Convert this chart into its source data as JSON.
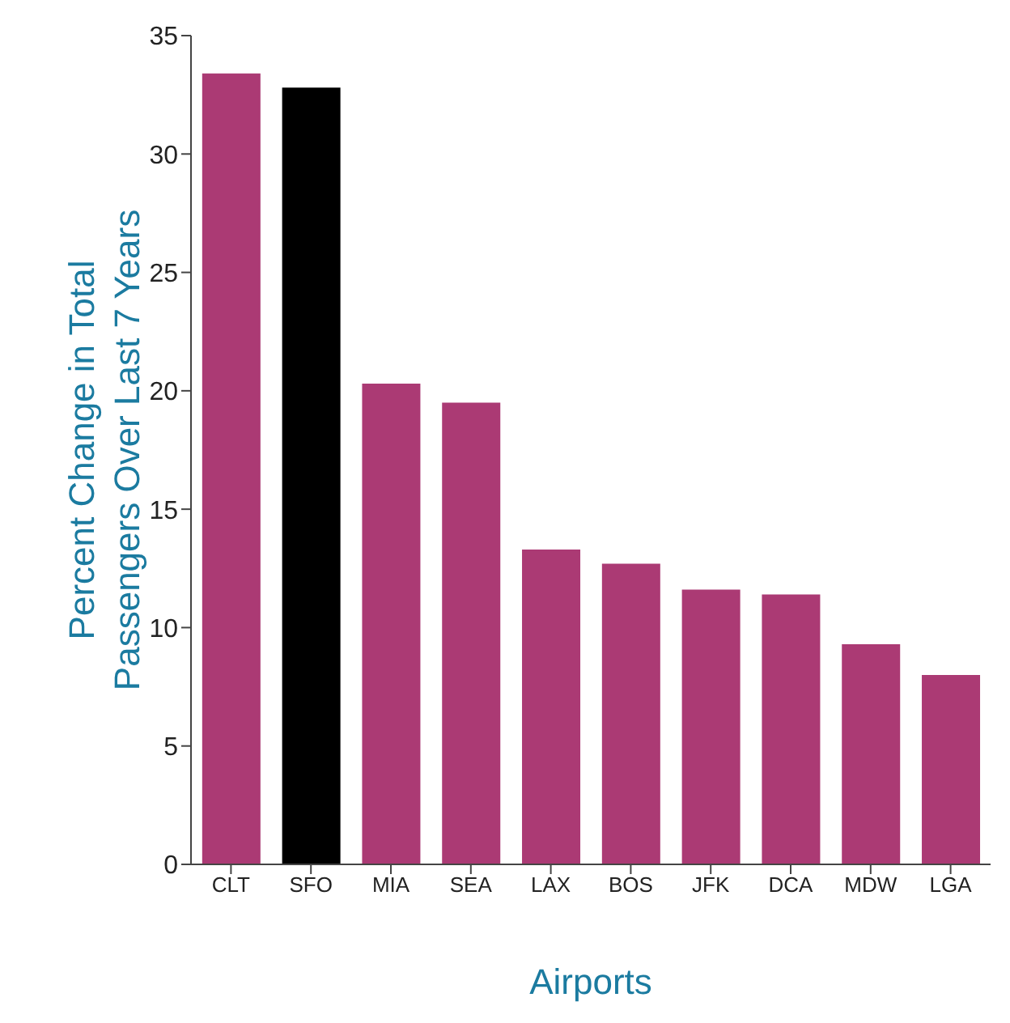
{
  "chart_data": {
    "type": "bar",
    "xlabel": "Airports",
    "ylabel": "Percent Change in Total Passengers Over Last 7 Years",
    "categories": [
      "CLT",
      "SFO",
      "MIA",
      "SEA",
      "LAX",
      "BOS",
      "JFK",
      "DCA",
      "MDW",
      "LGA"
    ],
    "values": [
      33.4,
      32.8,
      20.3,
      19.5,
      13.3,
      12.7,
      11.6,
      11.4,
      9.3,
      8.0
    ],
    "colors": [
      "#ab3a74",
      "#000000",
      "#ab3a74",
      "#ab3a74",
      "#ab3a74",
      "#ab3a74",
      "#ab3a74",
      "#ab3a74",
      "#ab3a74",
      "#ab3a74"
    ],
    "ylim": [
      0,
      35
    ],
    "yticks": [
      0,
      5,
      10,
      15,
      20,
      25,
      30,
      35
    ],
    "grid": false,
    "legend": false
  }
}
